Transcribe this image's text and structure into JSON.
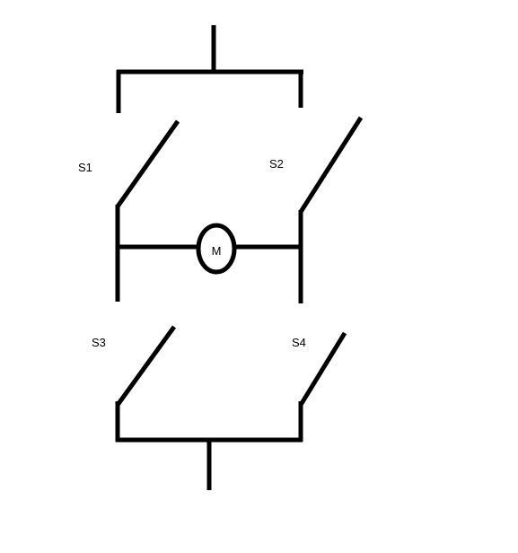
{
  "diagram": {
    "switches": [
      {
        "id": "s1",
        "label": "S1"
      },
      {
        "id": "s2",
        "label": "S2"
      },
      {
        "id": "s3",
        "label": "S3"
      },
      {
        "id": "s4",
        "label": "S4"
      }
    ],
    "motor": {
      "label": "M"
    }
  },
  "colors": {
    "line": "#000000",
    "background": "#ffffff"
  }
}
